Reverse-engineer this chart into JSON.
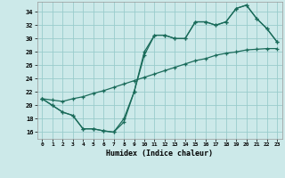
{
  "xlabel": "Humidex (Indice chaleur)",
  "bg_color": "#cce9e9",
  "grid_color": "#99cccc",
  "line_color": "#1a6b5a",
  "xlim": [
    -0.5,
    23.5
  ],
  "ylim": [
    15.0,
    35.5
  ],
  "yticks": [
    16,
    18,
    20,
    22,
    24,
    26,
    28,
    30,
    32,
    34
  ],
  "xticks": [
    0,
    1,
    2,
    3,
    4,
    5,
    6,
    7,
    8,
    9,
    10,
    11,
    12,
    13,
    14,
    15,
    16,
    17,
    18,
    19,
    20,
    21,
    22,
    23
  ],
  "line1_x": [
    0,
    1,
    2,
    3,
    4,
    5,
    6,
    7,
    8,
    9,
    10,
    11,
    12,
    13,
    14,
    15,
    16,
    17,
    18,
    19,
    20,
    21,
    22,
    23
  ],
  "line1_y": [
    21.0,
    20.0,
    19.0,
    18.5,
    16.5,
    16.5,
    16.2,
    16.0,
    17.5,
    22.0,
    28.0,
    30.5,
    30.5,
    30.0,
    30.0,
    32.5,
    32.5,
    32.0,
    32.5,
    34.5,
    35.0,
    33.0,
    31.5,
    29.5
  ],
  "line2_x": [
    0,
    1,
    2,
    3,
    4,
    5,
    6,
    7,
    8,
    9,
    10,
    11,
    12,
    13,
    14,
    15,
    16,
    17,
    18,
    19,
    20,
    21,
    22,
    23
  ],
  "line2_y": [
    21.0,
    20.0,
    19.0,
    18.5,
    16.5,
    16.5,
    16.2,
    16.0,
    18.0,
    22.0,
    27.5,
    30.5,
    30.5,
    30.0,
    30.0,
    32.5,
    32.5,
    32.0,
    32.5,
    34.5,
    35.0,
    33.0,
    31.5,
    29.5
  ],
  "line3_x": [
    0,
    1,
    2,
    3,
    4,
    5,
    6,
    7,
    8,
    9,
    10,
    11,
    12,
    13,
    14,
    15,
    16,
    17,
    18,
    19,
    20,
    21,
    22,
    23
  ],
  "line3_y": [
    21.0,
    20.8,
    20.6,
    21.0,
    21.3,
    21.8,
    22.2,
    22.7,
    23.2,
    23.7,
    24.2,
    24.7,
    25.2,
    25.7,
    26.2,
    26.7,
    27.0,
    27.5,
    27.8,
    28.0,
    28.3,
    28.4,
    28.5,
    28.5
  ]
}
